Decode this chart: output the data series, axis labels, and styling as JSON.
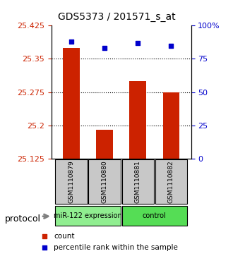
{
  "title": "GDS5373 / 201571_s_at",
  "samples": [
    "GSM1110879",
    "GSM1110880",
    "GSM1110881",
    "GSM1110882"
  ],
  "bar_values": [
    25.375,
    25.19,
    25.3,
    25.275
  ],
  "percentile_values": [
    88,
    83,
    87,
    85
  ],
  "ylim_left": [
    25.125,
    25.425
  ],
  "ylim_right": [
    0,
    100
  ],
  "yticks_left": [
    25.125,
    25.2,
    25.275,
    25.35,
    25.425
  ],
  "ytick_labels_left": [
    "25.125",
    "25.2",
    "25.275",
    "25.35",
    "25.425"
  ],
  "yticks_right": [
    0,
    25,
    50,
    75,
    100
  ],
  "ytick_labels_right": [
    "0",
    "25",
    "50",
    "75",
    "100%"
  ],
  "bar_color": "#cc2200",
  "percentile_color": "#0000cc",
  "grid_color": "#000000",
  "bar_width": 0.5,
  "groups": [
    {
      "label": "miR-122 expression",
      "samples": [
        0,
        1
      ],
      "color": "#90ee90"
    },
    {
      "label": "control",
      "samples": [
        2,
        3
      ],
      "color": "#55dd55"
    }
  ],
  "protocol_label": "protocol",
  "background_color": "#ffffff",
  "plot_bg": "#ffffff",
  "tick_color_left": "#cc2200",
  "tick_color_right": "#0000cc"
}
